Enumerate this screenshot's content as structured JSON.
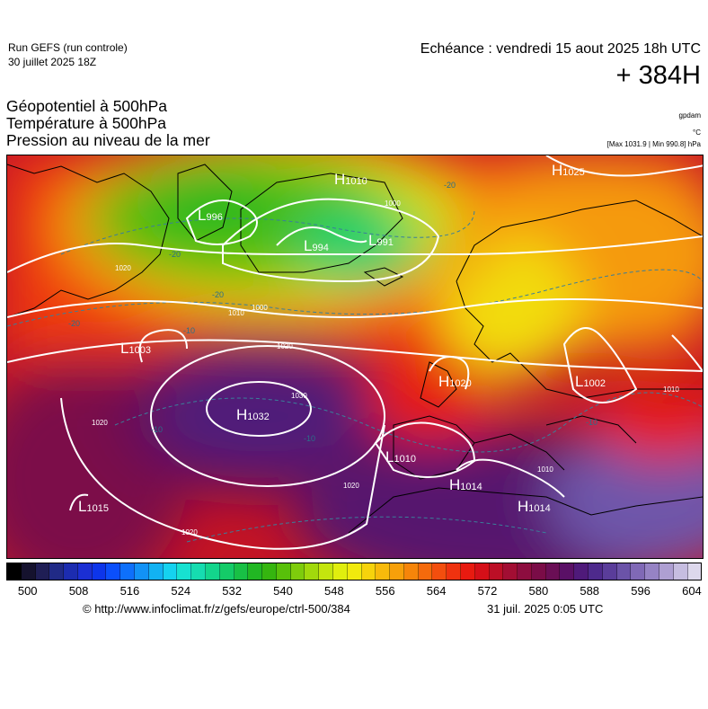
{
  "header": {
    "run_title": "Run GEFS (run controle)",
    "run_date": "30 juillet 2025 18Z",
    "valid_time": "Echéance : vendredi 15 aout 2025 18h UTC",
    "lead_time": "+ 384H",
    "parameters": [
      "Géopotentiel à 500hPa",
      "Température à 500hPa",
      "Pression au niveau de la mer"
    ],
    "unit_geopotential": "gpdam",
    "unit_temperature": "°C",
    "unit_pressure": "[Max 1031.9 | Min 990.8] hPa"
  },
  "map": {
    "pressure_centers": [
      {
        "type": "H",
        "value": "1010"
      },
      {
        "type": "H",
        "value": "1025"
      },
      {
        "type": "L",
        "value": "996"
      },
      {
        "type": "L",
        "value": "994"
      },
      {
        "type": "L",
        "value": "991"
      },
      {
        "type": "L",
        "value": "1003"
      },
      {
        "type": "H",
        "value": "1020"
      },
      {
        "type": "L",
        "value": "1002"
      },
      {
        "type": "H",
        "value": "1032"
      },
      {
        "type": "L",
        "value": "1010"
      },
      {
        "type": "H",
        "value": "1014"
      },
      {
        "type": "H",
        "value": "1014"
      },
      {
        "type": "L",
        "value": "1015"
      }
    ],
    "isobar_labels": [
      "1000",
      "1000",
      "1010",
      "1020",
      "1020",
      "1030",
      "1020",
      "1020",
      "1020",
      "1010",
      "1010"
    ],
    "temperature_labels": [
      "-20",
      "-20",
      "-20",
      "-20",
      "-10",
      "-10",
      "-10",
      "-10"
    ]
  },
  "colorbar": {
    "tick_labels": [
      "500",
      "508",
      "516",
      "524",
      "532",
      "540",
      "548",
      "556",
      "564",
      "572",
      "580",
      "588",
      "596",
      "604"
    ],
    "colors": [
      "#000000",
      "#15122e",
      "#1f1e55",
      "#202a86",
      "#1c2cb0",
      "#1b2fd3",
      "#0d35ea",
      "#0b4ffb",
      "#0e70fb",
      "#1292f6",
      "#12b2f2",
      "#15d2ef",
      "#17e1d1",
      "#16dcb0",
      "#13d58c",
      "#14cb68",
      "#18c045",
      "#21b723",
      "#35b50f",
      "#58c00a",
      "#7ecc0c",
      "#a1d90c",
      "#c4e50e",
      "#e0ee0e",
      "#f1ea0d",
      "#f6d30c",
      "#f7ba0b",
      "#f7a00a",
      "#f6850a",
      "#f56a0c",
      "#f34e0e",
      "#ef320f",
      "#e81a10",
      "#d50f18",
      "#bc0f26",
      "#a20e33",
      "#8d0d3f",
      "#7a0c47",
      "#6a0e55",
      "#5a1066",
      "#4f1a7a",
      "#4e2a8c",
      "#5a3d9a",
      "#6b53a8",
      "#8069b6",
      "#9683c4",
      "#ae9fd2",
      "#c6bde0",
      "#ddd8ec"
    ]
  },
  "footer": {
    "url": "© http://www.infoclimat.fr/z/gefs/europe/ctrl-500/384",
    "generated": "31 juil. 2025  0:05 UTC"
  }
}
